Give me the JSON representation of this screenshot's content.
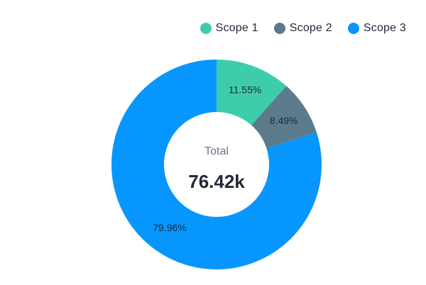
{
  "chart_data": {
    "type": "pie",
    "variant": "donut",
    "title": "",
    "categories": [
      "Scope 1",
      "Scope 2",
      "Scope 3"
    ],
    "values": [
      11.55,
      8.49,
      79.96
    ],
    "value_labels": [
      "11.55%",
      "8.49%",
      "79.96%"
    ],
    "colors": [
      "#3ecdaa",
      "#5b7b8c",
      "#0796fd"
    ],
    "center": {
      "title": "Total",
      "value": "76.42k"
    },
    "legend_position": "top-right"
  },
  "legend": {
    "items": [
      {
        "label": "Scope 1",
        "color": "#3ecdaa"
      },
      {
        "label": "Scope 2",
        "color": "#5b7b8c"
      },
      {
        "label": "Scope 3",
        "color": "#0796fd"
      }
    ]
  }
}
